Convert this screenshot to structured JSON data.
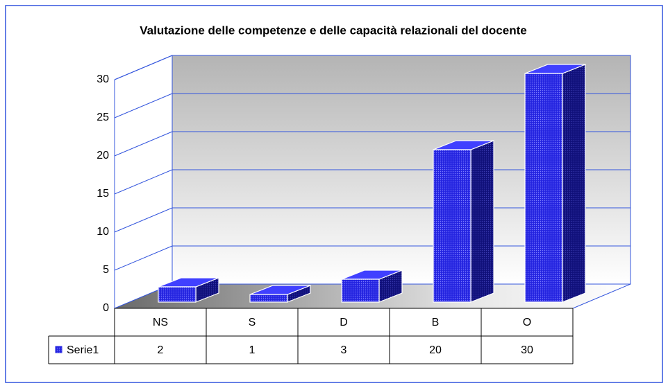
{
  "chart_data": {
    "type": "bar",
    "title": "Valutazione delle competenze e delle capacità relazionali del docente",
    "categories": [
      "NS",
      "S",
      "D",
      "B",
      "O"
    ],
    "series": [
      {
        "name": "Serie1",
        "color": "#2424e0",
        "values": [
          2,
          1,
          3,
          20,
          30
        ]
      }
    ],
    "ylim": [
      0,
      30
    ],
    "yticks": [
      0,
      5,
      10,
      15,
      20,
      25,
      30
    ],
    "grid": true
  }
}
